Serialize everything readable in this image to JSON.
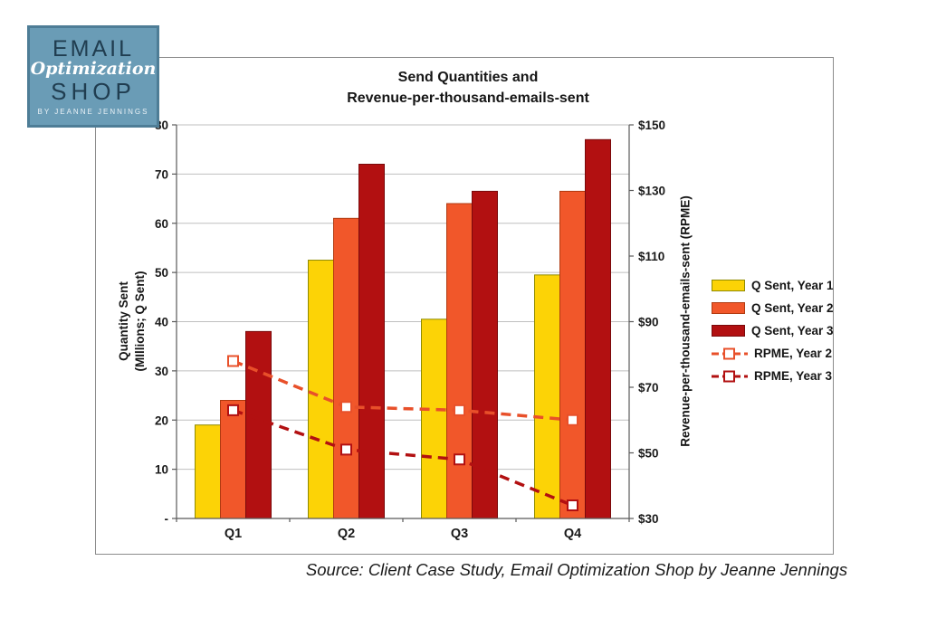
{
  "page": {
    "background": "#ffffff",
    "frame_border": "#8c8c8c"
  },
  "logo": {
    "line1": "EMAIL",
    "line2": "Optimization",
    "line3": "SHOP",
    "line4": "BY JEANNE JENNINGS",
    "bg_color": "#6a9cb6",
    "border_color": "#4e7d96",
    "text_dark": "#203d50",
    "text_light": "#ffffff"
  },
  "chart_data": {
    "type": "bar",
    "subtype": "combo-bar-line-dual-axis",
    "title_line1": "Send Quantities and",
    "title_line2": "Revenue-per-thousand-emails-sent",
    "categories": [
      "Q1",
      "Q2",
      "Q3",
      "Q4"
    ],
    "bar_series": [
      {
        "name": "Q Sent, Year 1",
        "values": [
          19,
          52.5,
          40.5,
          49.5
        ],
        "fill": "#fcd306",
        "border": "#8f8b00"
      },
      {
        "name": "Q Sent, Year 2",
        "values": [
          24,
          61,
          64,
          66.5
        ],
        "fill": "#f1572a",
        "border": "#b03a10"
      },
      {
        "name": "Q Sent, Year 3",
        "values": [
          38,
          72,
          66.5,
          77
        ],
        "fill": "#b21011",
        "border": "#7a0a0b"
      }
    ],
    "line_series": [
      {
        "name": "RPME, Year 2",
        "values": [
          78,
          64,
          63,
          60
        ],
        "color": "#e8502a"
      },
      {
        "name": "RPME, Year 3",
        "values": [
          63,
          51,
          48,
          34
        ],
        "color": "#b21011"
      }
    ],
    "axis_left": {
      "title_line1": "Quantity Sent",
      "title_line2": "(MIllions; Q Sent)",
      "min": 0,
      "max": 80,
      "tick_step": 10,
      "tick_labels": [
        "80",
        "70",
        "60",
        "50",
        "40",
        "30",
        "20",
        "10",
        "-"
      ]
    },
    "axis_right": {
      "title": "Revenue-per-thousand-emails-sent (RPME)",
      "min": 30,
      "max": 150,
      "tick_step": 20,
      "tick_labels": [
        "$150",
        "$130",
        "$110",
        "$90",
        "$70",
        "$50",
        "$30"
      ]
    },
    "grid": true,
    "gridline_color": "#bfbfbf",
    "axis_color": "#595959",
    "legend_position": "right"
  },
  "legend": {
    "items": [
      {
        "type": "bar",
        "label": "Q Sent, Year 1",
        "fill": "#fcd306",
        "border": "#8f8b00"
      },
      {
        "type": "bar",
        "label": "Q Sent, Year 2",
        "fill": "#f1572a",
        "border": "#b03a10"
      },
      {
        "type": "bar",
        "label": "Q Sent, Year 3",
        "fill": "#b21011",
        "border": "#7a0a0b"
      },
      {
        "type": "line",
        "label": "RPME, Year 2",
        "color": "#e8502a"
      },
      {
        "type": "line",
        "label": "RPME, Year 3",
        "color": "#b21011"
      }
    ]
  },
  "source": {
    "text": "Source: Client Case Study, Email Optimization Shop by Jeanne Jennings"
  }
}
